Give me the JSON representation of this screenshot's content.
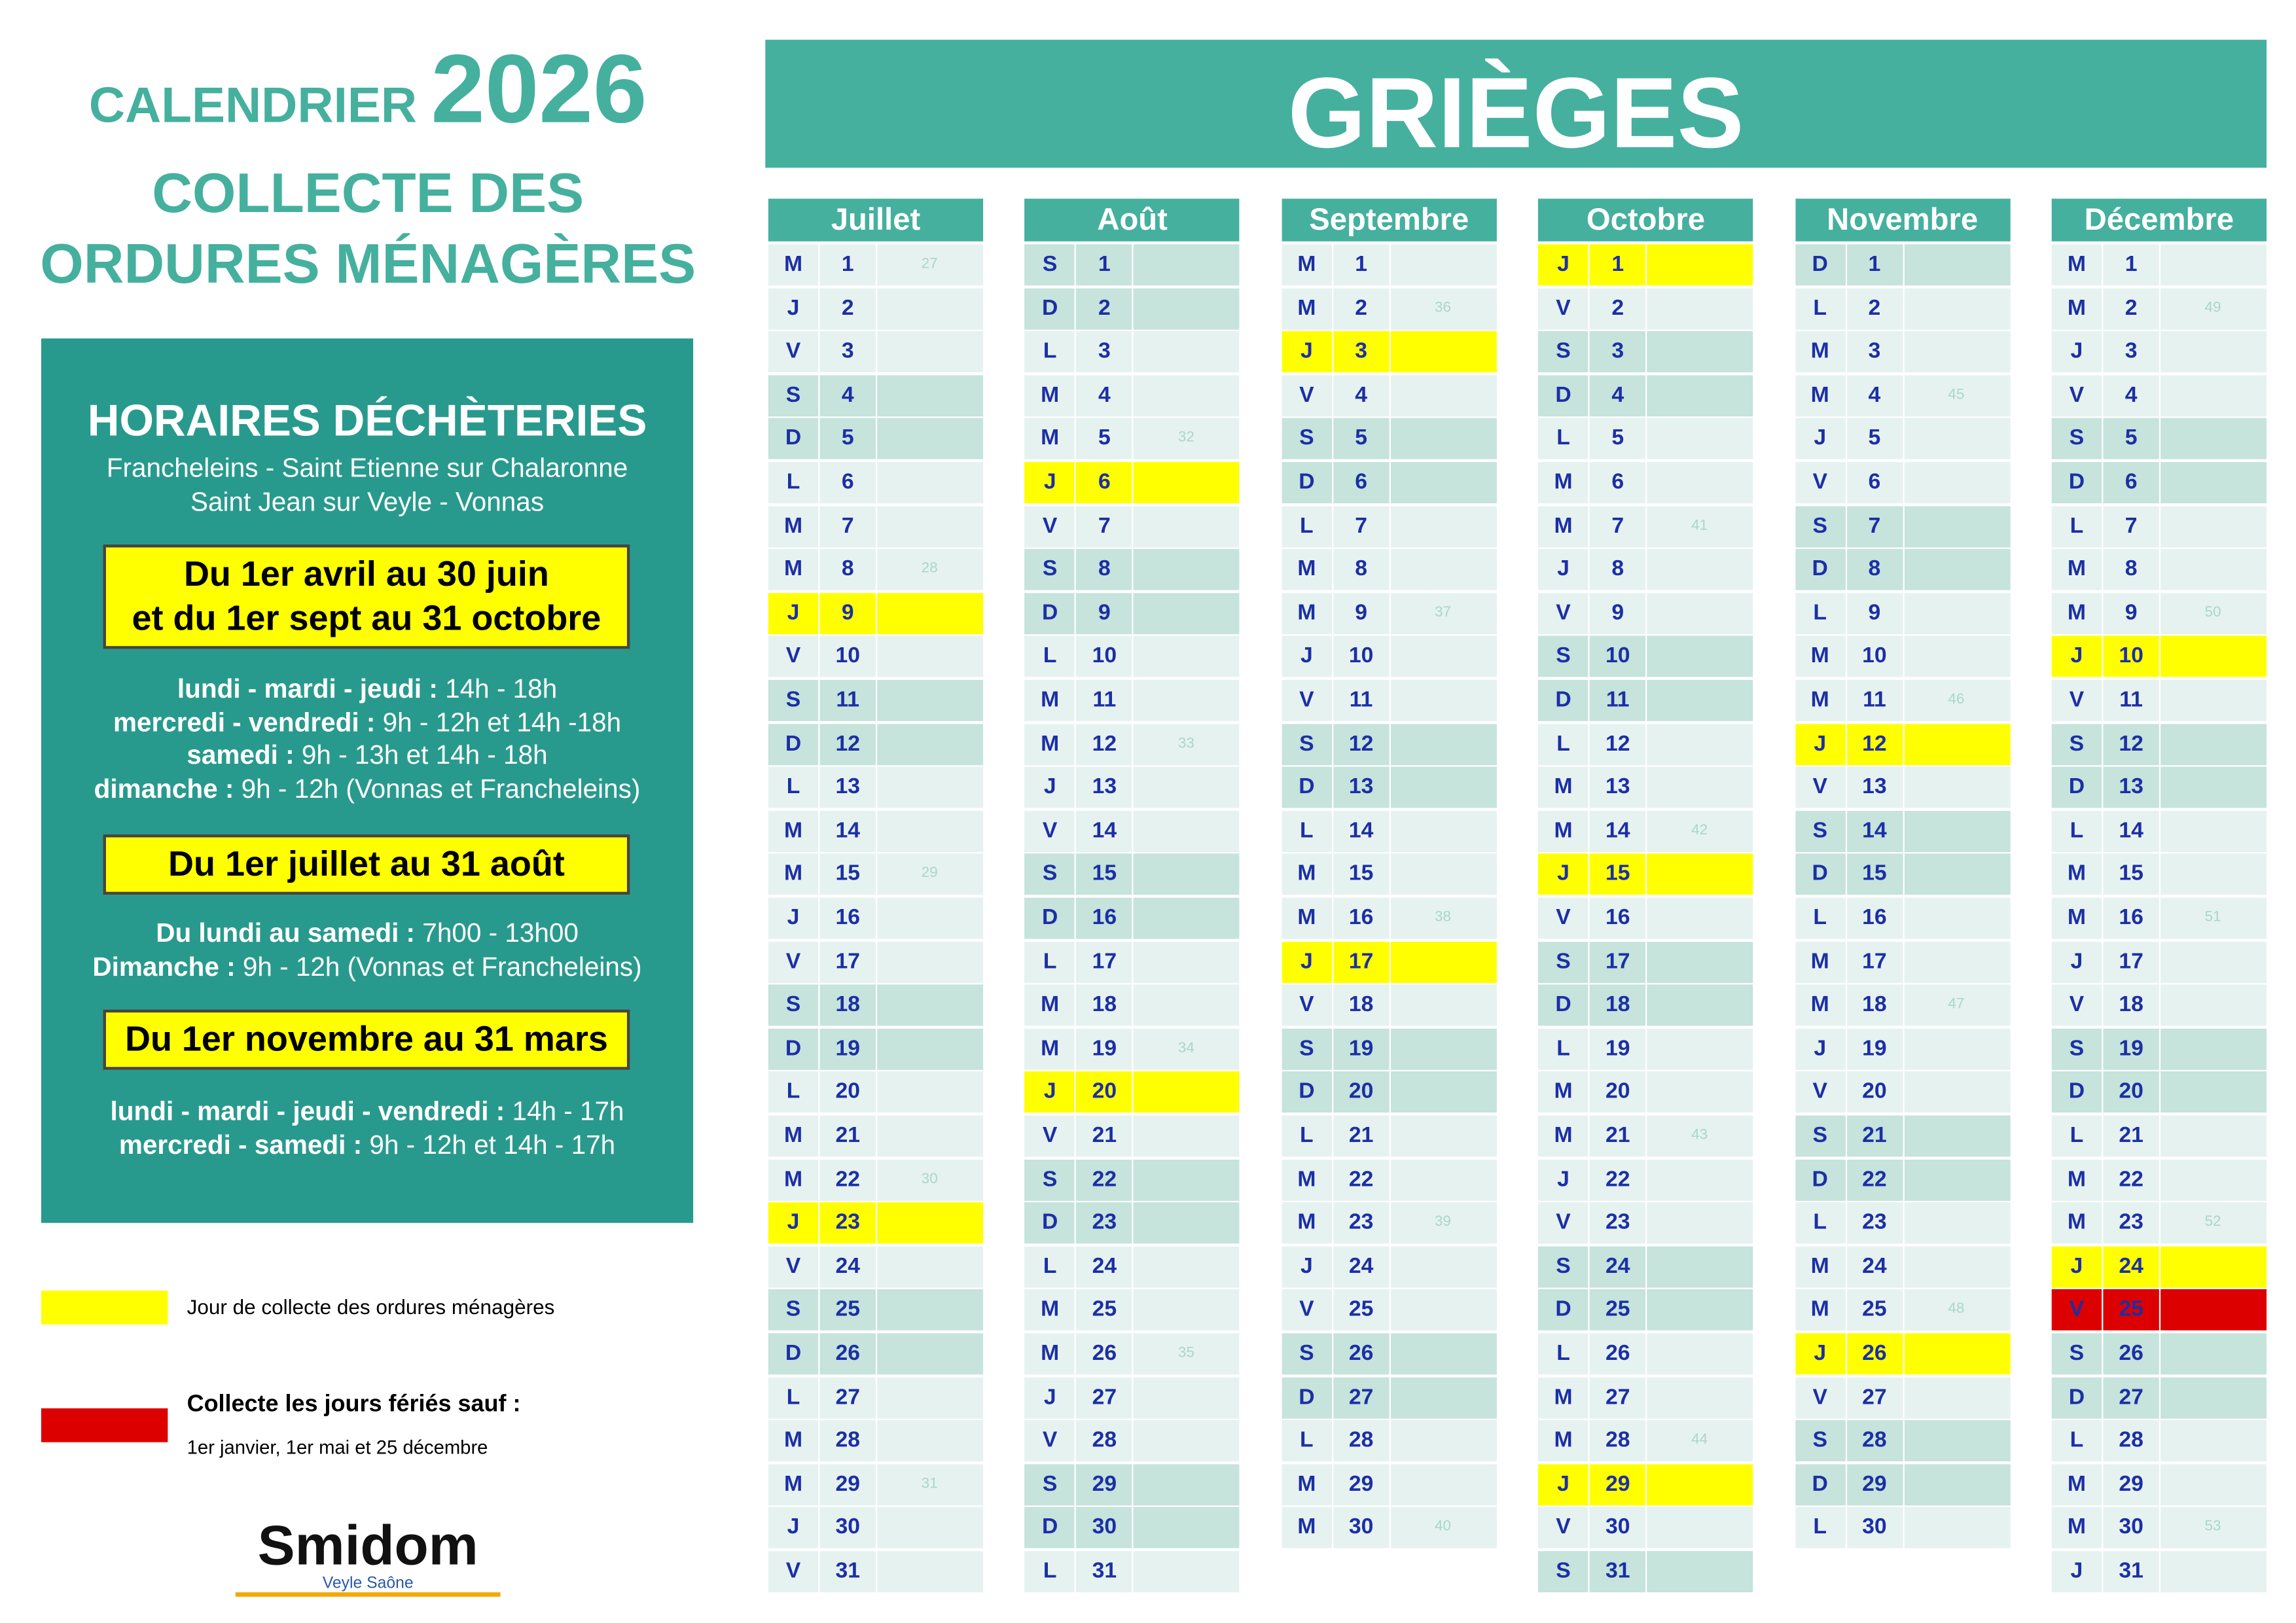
{
  "header": {
    "title": "CALENDRIER",
    "year": "2026",
    "subtitle": [
      "COLLECTE DES",
      "ORDURES MÉNAGÈRES"
    ]
  },
  "town": "GRIÈGES",
  "hours": {
    "title": "HORAIRES DÉCHÈTERIES",
    "sites": [
      "Francheleins - Saint Etienne sur Chalaronne",
      "Saint Jean sur Veyle - Vonnas"
    ],
    "periods": [
      {
        "label": [
          "Du 1er avril au 30 juin",
          "et du 1er sept au 31 octobre"
        ],
        "schedule": [
          [
            "lundi - mardi - jeudi :",
            " 14h - 18h"
          ],
          [
            "mercredi - vendredi :",
            " 9h - 12h et 14h -18h"
          ],
          [
            "samedi :",
            " 9h - 13h et 14h - 18h"
          ],
          [
            "dimanche :",
            " 9h - 12h (Vonnas et Francheleins)"
          ]
        ]
      },
      {
        "label": [
          "Du 1er juillet au 31 août"
        ],
        "schedule": [
          [
            "Du lundi au samedi :",
            " 7h00 - 13h00"
          ],
          [
            "Dimanche :",
            " 9h - 12h (Vonnas et Francheleins)"
          ]
        ]
      },
      {
        "label": [
          "Du 1er novembre au 31 mars"
        ],
        "schedule": [
          [
            "lundi - mardi - jeudi - vendredi :",
            " 14h - 17h"
          ],
          [
            "mercredi - samedi :",
            " 9h - 12h et 14h - 17h"
          ]
        ]
      }
    ]
  },
  "legend": {
    "collect": "Jour de collecte des ordures ménagères",
    "holiday_title": "Collecte les jours fériés sauf :",
    "holiday_text": "1er janvier, 1er mai et 25 décembre"
  },
  "logo": {
    "name": "Smidom",
    "tagline": "Veyle Saône"
  },
  "styles": {
    "p": "#e6f2ef",
    "w": "#c6e3dc",
    "c": "#ffff00",
    "h": "#dd0000"
  },
  "months": [
    {
      "name": "Juillet",
      "days": [
        [
          "M",
          1,
          27
        ],
        [
          "J",
          2
        ],
        [
          "V",
          3
        ],
        [
          "S",
          4,
          null,
          "w"
        ],
        [
          "D",
          5,
          null,
          "w"
        ],
        [
          "L",
          6
        ],
        [
          "M",
          7
        ],
        [
          "M",
          8,
          28
        ],
        [
          "J",
          9,
          null,
          "c"
        ],
        [
          "V",
          10
        ],
        [
          "S",
          11,
          null,
          "w"
        ],
        [
          "D",
          12,
          null,
          "w"
        ],
        [
          "L",
          13
        ],
        [
          "M",
          14
        ],
        [
          "M",
          15,
          29
        ],
        [
          "J",
          16
        ],
        [
          "V",
          17
        ],
        [
          "S",
          18,
          null,
          "w"
        ],
        [
          "D",
          19,
          null,
          "w"
        ],
        [
          "L",
          20
        ],
        [
          "M",
          21
        ],
        [
          "M",
          22,
          30
        ],
        [
          "J",
          23,
          null,
          "c"
        ],
        [
          "V",
          24
        ],
        [
          "S",
          25,
          null,
          "w"
        ],
        [
          "D",
          26,
          null,
          "w"
        ],
        [
          "L",
          27
        ],
        [
          "M",
          28
        ],
        [
          "M",
          29,
          31
        ],
        [
          "J",
          30
        ],
        [
          "V",
          31
        ]
      ]
    },
    {
      "name": "Août",
      "days": [
        [
          "S",
          1,
          null,
          "w"
        ],
        [
          "D",
          2,
          null,
          "w"
        ],
        [
          "L",
          3
        ],
        [
          "M",
          4
        ],
        [
          "M",
          5,
          32
        ],
        [
          "J",
          6,
          null,
          "c"
        ],
        [
          "V",
          7
        ],
        [
          "S",
          8,
          null,
          "w"
        ],
        [
          "D",
          9,
          null,
          "w"
        ],
        [
          "L",
          10
        ],
        [
          "M",
          11
        ],
        [
          "M",
          12,
          33
        ],
        [
          "J",
          13
        ],
        [
          "V",
          14
        ],
        [
          "S",
          15,
          null,
          "w"
        ],
        [
          "D",
          16,
          null,
          "w"
        ],
        [
          "L",
          17
        ],
        [
          "M",
          18
        ],
        [
          "M",
          19,
          34
        ],
        [
          "J",
          20,
          null,
          "c"
        ],
        [
          "V",
          21
        ],
        [
          "S",
          22,
          null,
          "w"
        ],
        [
          "D",
          23,
          null,
          "w"
        ],
        [
          "L",
          24
        ],
        [
          "M",
          25
        ],
        [
          "M",
          26,
          35
        ],
        [
          "J",
          27
        ],
        [
          "V",
          28
        ],
        [
          "S",
          29,
          null,
          "w"
        ],
        [
          "D",
          30,
          null,
          "w"
        ],
        [
          "L",
          31
        ]
      ]
    },
    {
      "name": "Septembre",
      "days": [
        [
          "M",
          1
        ],
        [
          "M",
          2,
          36
        ],
        [
          "J",
          3,
          null,
          "c"
        ],
        [
          "V",
          4
        ],
        [
          "S",
          5,
          null,
          "w"
        ],
        [
          "D",
          6,
          null,
          "w"
        ],
        [
          "L",
          7
        ],
        [
          "M",
          8
        ],
        [
          "M",
          9,
          37
        ],
        [
          "J",
          10
        ],
        [
          "V",
          11
        ],
        [
          "S",
          12,
          null,
          "w"
        ],
        [
          "D",
          13,
          null,
          "w"
        ],
        [
          "L",
          14
        ],
        [
          "M",
          15
        ],
        [
          "M",
          16,
          38
        ],
        [
          "J",
          17,
          null,
          "c"
        ],
        [
          "V",
          18
        ],
        [
          "S",
          19,
          null,
          "w"
        ],
        [
          "D",
          20,
          null,
          "w"
        ],
        [
          "L",
          21
        ],
        [
          "M",
          22
        ],
        [
          "M",
          23,
          39
        ],
        [
          "J",
          24
        ],
        [
          "V",
          25
        ],
        [
          "S",
          26,
          null,
          "w"
        ],
        [
          "D",
          27,
          null,
          "w"
        ],
        [
          "L",
          28
        ],
        [
          "M",
          29
        ],
        [
          "M",
          30,
          40
        ]
      ]
    },
    {
      "name": "Octobre",
      "days": [
        [
          "J",
          1,
          null,
          "c"
        ],
        [
          "V",
          2
        ],
        [
          "S",
          3,
          null,
          "w"
        ],
        [
          "D",
          4,
          null,
          "w"
        ],
        [
          "L",
          5
        ],
        [
          "M",
          6
        ],
        [
          "M",
          7,
          41
        ],
        [
          "J",
          8
        ],
        [
          "V",
          9
        ],
        [
          "S",
          10,
          null,
          "w"
        ],
        [
          "D",
          11,
          null,
          "w"
        ],
        [
          "L",
          12
        ],
        [
          "M",
          13
        ],
        [
          "M",
          14,
          42
        ],
        [
          "J",
          15,
          null,
          "c"
        ],
        [
          "V",
          16
        ],
        [
          "S",
          17,
          null,
          "w"
        ],
        [
          "D",
          18,
          null,
          "w"
        ],
        [
          "L",
          19
        ],
        [
          "M",
          20
        ],
        [
          "M",
          21,
          43
        ],
        [
          "J",
          22
        ],
        [
          "V",
          23
        ],
        [
          "S",
          24,
          null,
          "w"
        ],
        [
          "D",
          25,
          null,
          "w"
        ],
        [
          "L",
          26
        ],
        [
          "M",
          27
        ],
        [
          "M",
          28,
          44
        ],
        [
          "J",
          29,
          null,
          "c"
        ],
        [
          "V",
          30
        ],
        [
          "S",
          31,
          null,
          "w"
        ]
      ]
    },
    {
      "name": "Novembre",
      "days": [
        [
          "D",
          1,
          null,
          "w"
        ],
        [
          "L",
          2
        ],
        [
          "M",
          3
        ],
        [
          "M",
          4,
          45
        ],
        [
          "J",
          5
        ],
        [
          "V",
          6
        ],
        [
          "S",
          7,
          null,
          "w"
        ],
        [
          "D",
          8,
          null,
          "w"
        ],
        [
          "L",
          9
        ],
        [
          "M",
          10
        ],
        [
          "M",
          11,
          46
        ],
        [
          "J",
          12,
          null,
          "c"
        ],
        [
          "V",
          13
        ],
        [
          "S",
          14,
          null,
          "w"
        ],
        [
          "D",
          15,
          null,
          "w"
        ],
        [
          "L",
          16
        ],
        [
          "M",
          17
        ],
        [
          "M",
          18,
          47
        ],
        [
          "J",
          19
        ],
        [
          "V",
          20
        ],
        [
          "S",
          21,
          null,
          "w"
        ],
        [
          "D",
          22,
          null,
          "w"
        ],
        [
          "L",
          23
        ],
        [
          "M",
          24
        ],
        [
          "M",
          25,
          48
        ],
        [
          "J",
          26,
          null,
          "c"
        ],
        [
          "V",
          27
        ],
        [
          "S",
          28,
          null,
          "w"
        ],
        [
          "D",
          29,
          null,
          "w"
        ],
        [
          "L",
          30
        ]
      ]
    },
    {
      "name": "Décembre",
      "days": [
        [
          "M",
          1
        ],
        [
          "M",
          2,
          49
        ],
        [
          "J",
          3
        ],
        [
          "V",
          4
        ],
        [
          "S",
          5,
          null,
          "w"
        ],
        [
          "D",
          6,
          null,
          "w"
        ],
        [
          "L",
          7
        ],
        [
          "M",
          8
        ],
        [
          "M",
          9,
          50
        ],
        [
          "J",
          10,
          null,
          "c"
        ],
        [
          "V",
          11
        ],
        [
          "S",
          12,
          null,
          "w"
        ],
        [
          "D",
          13,
          null,
          "w"
        ],
        [
          "L",
          14
        ],
        [
          "M",
          15
        ],
        [
          "M",
          16,
          51
        ],
        [
          "J",
          17
        ],
        [
          "V",
          18
        ],
        [
          "S",
          19,
          null,
          "w"
        ],
        [
          "D",
          20,
          null,
          "w"
        ],
        [
          "L",
          21
        ],
        [
          "M",
          22
        ],
        [
          "M",
          23,
          52
        ],
        [
          "J",
          24,
          null,
          "c"
        ],
        [
          "V",
          25,
          null,
          "h"
        ],
        [
          "S",
          26,
          null,
          "w"
        ],
        [
          "D",
          27,
          null,
          "w"
        ],
        [
          "L",
          28
        ],
        [
          "M",
          29
        ],
        [
          "M",
          30,
          53
        ],
        [
          "J",
          31
        ]
      ]
    }
  ]
}
